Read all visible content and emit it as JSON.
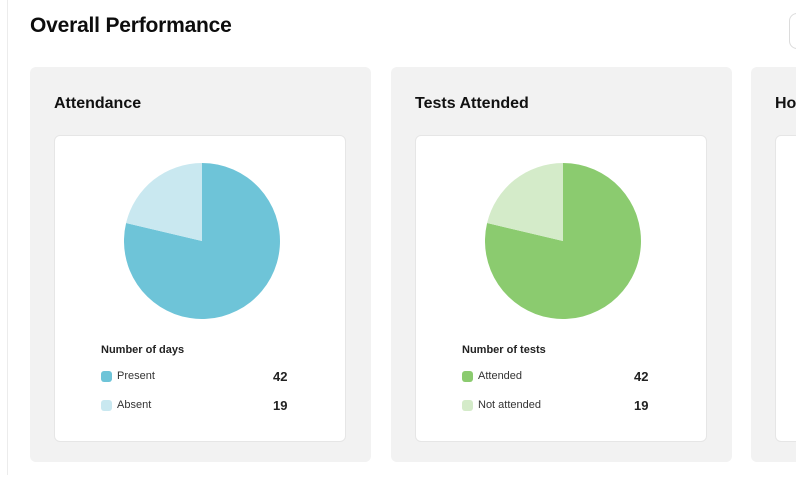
{
  "header": {
    "title": "Overall Performance"
  },
  "colors": {
    "attendance_primary": "#6ec4d8",
    "attendance_secondary": "#c9e8f0",
    "tests_primary": "#8bcb6f",
    "tests_secondary": "#d4ebc9"
  },
  "cards": [
    {
      "title": "Attendance",
      "legend_title": "Number of days",
      "items": [
        {
          "label": "Present",
          "value": "42"
        },
        {
          "label": "Absent",
          "value": "19"
        }
      ]
    },
    {
      "title": "Tests Attended",
      "legend_title": "Number of tests",
      "items": [
        {
          "label": "Attended",
          "value": "42"
        },
        {
          "label": "Not attended",
          "value": "19"
        }
      ]
    },
    {
      "title": "Ho"
    }
  ]
}
